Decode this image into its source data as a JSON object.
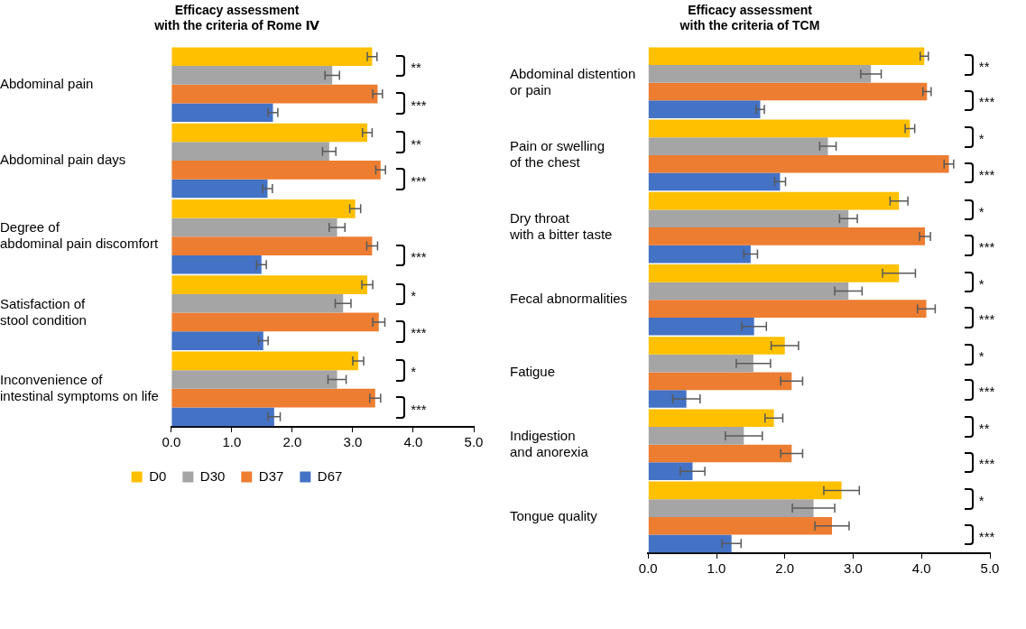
{
  "chart_data": [
    {
      "type": "bar",
      "orientation": "horizontal",
      "title": "Efficacy assessment\nwith the criteria of Rome Ⅳ",
      "categories": [
        "Abdominal pain",
        "Abdominal pain days",
        "Degree of\nabdominal pain discomfort",
        "Satisfaction of\nstool condition",
        "Inconvenience of\nintestinal symptoms on life"
      ],
      "series": [
        {
          "name": "D0",
          "color": "#ffc000",
          "values": [
            3.32,
            3.24,
            3.04,
            3.24,
            3.09
          ],
          "errors": [
            0.08,
            0.08,
            0.09,
            0.09,
            0.09
          ]
        },
        {
          "name": "D30",
          "color": "#a5a5a5",
          "values": [
            2.66,
            2.61,
            2.74,
            2.84,
            2.74
          ],
          "errors": [
            0.12,
            0.11,
            0.13,
            0.13,
            0.15
          ]
        },
        {
          "name": "D37",
          "color": "#ed7d31",
          "values": [
            3.41,
            3.46,
            3.32,
            3.43,
            3.37
          ],
          "errors": [
            0.08,
            0.08,
            0.09,
            0.1,
            0.09
          ]
        },
        {
          "name": "D67",
          "color": "#4472c4",
          "values": [
            1.68,
            1.59,
            1.49,
            1.52,
            1.7
          ],
          "errors": [
            0.08,
            0.08,
            0.08,
            0.08,
            0.1
          ]
        }
      ],
      "xlim": [
        0,
        5
      ],
      "xticks": [
        {
          "value": 0,
          "label": "0.0"
        },
        {
          "value": 1,
          "label": "1.0"
        },
        {
          "value": 2,
          "label": "2.0"
        },
        {
          "value": 3,
          "label": "3.0"
        },
        {
          "value": 4,
          "label": "4.0"
        },
        {
          "value": 5,
          "label": "5.0"
        }
      ],
      "annotations": [
        "**",
        "***",
        "**",
        "***",
        null,
        "***",
        "*",
        "***",
        "*",
        "***"
      ],
      "grid": false,
      "legend": "bottom"
    },
    {
      "type": "bar",
      "orientation": "horizontal",
      "title": "Efficacy assessment\nwith the criteria of TCM",
      "categories": [
        "Abdominal distention\nor pain",
        "Pain or swelling\nof the chest",
        "Dry throat\nwith a bitter taste",
        "Fecal abnormalities",
        "Fatigue",
        "Indigestion\nand anorexia",
        "Tongue quality"
      ],
      "series": [
        {
          "color": "#ffc000",
          "values": [
            4.04,
            3.83,
            3.67,
            3.67,
            2.0,
            1.84,
            2.83
          ],
          "errors": [
            0.06,
            0.07,
            0.13,
            0.24,
            0.2,
            0.13,
            0.26
          ]
        },
        {
          "color": "#a5a5a5",
          "values": [
            3.26,
            2.63,
            2.93,
            2.93,
            1.54,
            1.4,
            2.42
          ],
          "errors": [
            0.15,
            0.12,
            0.13,
            0.2,
            0.25,
            0.27,
            0.31
          ]
        },
        {
          "color": "#ed7d31",
          "values": [
            4.08,
            4.4,
            4.05,
            4.07,
            2.1,
            2.1,
            2.69
          ],
          "errors": [
            0.06,
            0.07,
            0.08,
            0.13,
            0.16,
            0.16,
            0.25
          ]
        },
        {
          "color": "#4472c4",
          "values": [
            1.64,
            1.93,
            1.5,
            1.55,
            0.56,
            0.65,
            1.22
          ],
          "errors": [
            0.06,
            0.08,
            0.1,
            0.18,
            0.2,
            0.18,
            0.14
          ]
        }
      ],
      "xlim": [
        0,
        5
      ],
      "xticks": [
        {
          "value": 0,
          "label": "0.0"
        },
        {
          "value": 1,
          "label": "1.0"
        },
        {
          "value": 2,
          "label": "2.0"
        },
        {
          "value": 3,
          "label": "3.0"
        },
        {
          "value": 4,
          "label": "4.0"
        },
        {
          "value": 5,
          "label": "5.0"
        }
      ],
      "annotations": [
        "**",
        "***",
        "*",
        "***",
        "*",
        "***",
        "*",
        "***",
        "*",
        "***",
        "**",
        "***",
        "*",
        "***"
      ],
      "grid": false,
      "legend": false
    }
  ]
}
